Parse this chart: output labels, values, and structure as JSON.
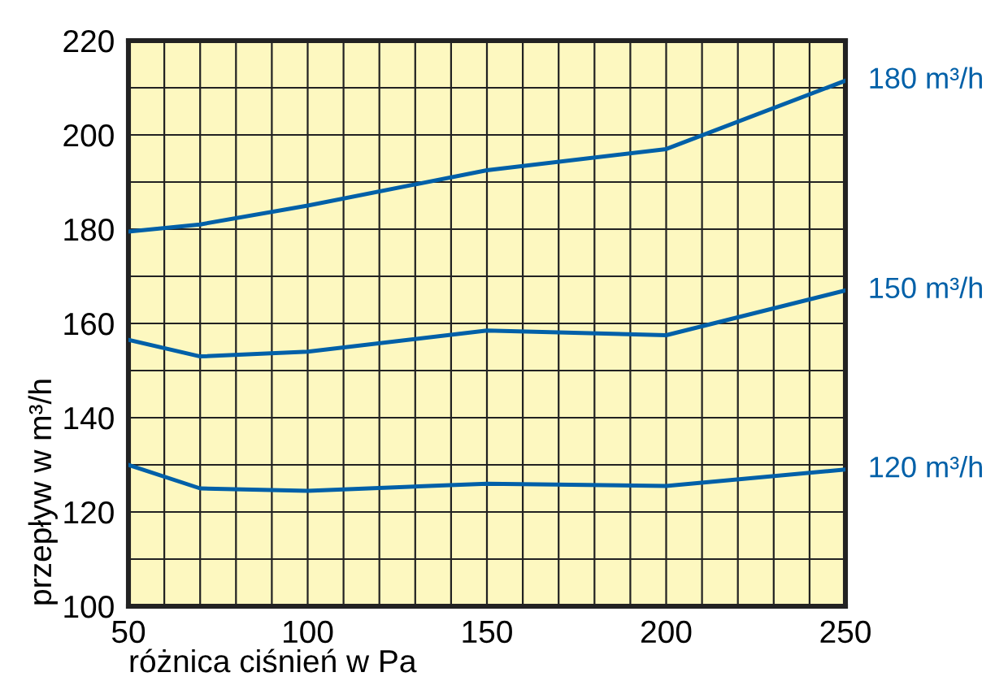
{
  "chart_data": {
    "type": "line",
    "xlabel": "różnica ciśnień w Pa",
    "ylabel": "przepływ w m³/h",
    "x": [
      50,
      70,
      100,
      150,
      200,
      250
    ],
    "series": [
      {
        "name": "180 m³/h",
        "color": "#0060a8",
        "values": [
          179.5,
          181,
          185,
          192.5,
          197,
          211.5
        ]
      },
      {
        "name": "150 m³/h",
        "color": "#0060a8",
        "values": [
          156.5,
          153,
          154,
          158.5,
          157.5,
          167
        ]
      },
      {
        "name": "120 m³/h",
        "color": "#0060a8",
        "values": [
          130,
          125,
          124.5,
          126,
          125.5,
          129
        ]
      }
    ],
    "xlim": [
      50,
      250
    ],
    "ylim": [
      100,
      220
    ],
    "xticks": [
      50,
      {
        "value": 60,
        "label": null
      },
      {
        "value": 70,
        "label": null
      },
      {
        "value": 80,
        "label": null
      },
      {
        "value": 90,
        "label": null
      },
      100,
      {
        "value": 110,
        "label": null
      },
      {
        "value": 120,
        "label": null
      },
      {
        "value": 130,
        "label": null
      },
      {
        "value": 140,
        "label": null
      },
      150,
      {
        "value": 160,
        "label": null
      },
      {
        "value": 170,
        "label": null
      },
      {
        "value": 180,
        "label": null
      },
      {
        "value": 190,
        "label": null
      },
      200,
      {
        "value": 210,
        "label": null
      },
      {
        "value": 220,
        "label": null
      },
      {
        "value": 230,
        "label": null
      },
      {
        "value": 240,
        "label": null
      },
      250
    ],
    "yticks": [
      100,
      {
        "value": 110,
        "label": null
      },
      120,
      {
        "value": 130,
        "label": null
      },
      140,
      {
        "value": 150,
        "label": null
      },
      160,
      {
        "value": 170,
        "label": null
      },
      180,
      {
        "value": 190,
        "label": null
      },
      200,
      {
        "value": 210,
        "label": null
      },
      220
    ],
    "grid": true,
    "legend": false,
    "marker": "none",
    "line_style": "solid"
  }
}
